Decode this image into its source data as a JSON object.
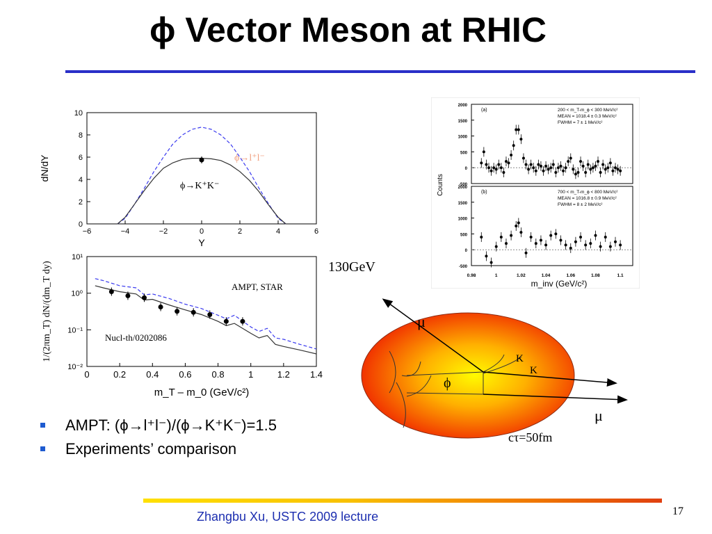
{
  "slide": {
    "title": "ϕ Vector Meson at RHIC",
    "page_number": "17",
    "footer": "Zhangbu Xu, USTC 2009 lecture",
    "energy_label": "130GeV",
    "bullets": [
      "AMPT:  (ϕ→l⁺l⁻)/(ϕ→K⁺K⁻)=1.5",
      "Experiments’ comparison"
    ],
    "colors": {
      "title_rule": "#2a2fc8",
      "bullet": "#1e5bd0",
      "footer_text": "#1d2fb0",
      "dilepton_label": "#f0a080"
    }
  },
  "diagram": {
    "mu_top": "μ",
    "mu_bottom": "μ",
    "k1": "K",
    "k2": "K",
    "phi": "ϕ",
    "ctau": "cτ=50fm"
  },
  "chart_data": [
    {
      "type": "line",
      "xlabel": "Y",
      "ylabel": "dN/dY",
      "xlim": [
        -6,
        6
      ],
      "ylim": [
        0,
        10
      ],
      "xticks": [
        -6,
        -4,
        -2,
        0,
        2,
        4,
        6
      ],
      "yticks": [
        0,
        2,
        4,
        6,
        8,
        10
      ],
      "annotations": [
        "ϕ→l⁺l⁻",
        "ϕ→K⁺K⁻"
      ],
      "series": [
        {
          "name": "ϕ→l⁺l⁻",
          "style": "dashed",
          "color": "#3b3bef",
          "x": [
            -4.4,
            -4,
            -3.5,
            -3,
            -2.5,
            -2,
            -1.5,
            -1,
            -0.5,
            0,
            0.5,
            1,
            1.5,
            2,
            2.5,
            3,
            3.5,
            4,
            4.4
          ],
          "y": [
            0,
            0.5,
            1.8,
            3.2,
            4.7,
            6.0,
            7.2,
            8.0,
            8.5,
            8.7,
            8.5,
            8.0,
            7.2,
            6.0,
            4.7,
            3.2,
            1.8,
            0.5,
            0
          ]
        },
        {
          "name": "ϕ→K⁺K⁻",
          "style": "solid",
          "color": "#333333",
          "x": [
            -4.4,
            -4,
            -3.5,
            -3,
            -2.5,
            -2,
            -1.5,
            -1,
            -0.5,
            0,
            0.5,
            1,
            1.5,
            2,
            2.5,
            3,
            3.5,
            4,
            4.4
          ],
          "y": [
            0,
            0.6,
            1.8,
            3.0,
            4.1,
            5.0,
            5.5,
            5.8,
            5.9,
            5.9,
            5.85,
            5.7,
            5.3,
            4.7,
            3.9,
            2.9,
            1.7,
            0.6,
            0
          ]
        },
        {
          "name": "data",
          "style": "points",
          "x": [
            0
          ],
          "y": [
            5.75
          ]
        }
      ]
    },
    {
      "type": "line",
      "xlabel": "m_T – m_0  (GeV/c²)",
      "ylabel": "1/(2πm_T) dN/(dm_T dy)",
      "xlim": [
        0,
        1.4
      ],
      "ylim": [
        0.01,
        10
      ],
      "yscale": "log",
      "xticks": [
        0,
        0.2,
        0.4,
        0.6,
        0.8,
        1.0,
        1.2,
        1.4
      ],
      "yticks": [
        "10⁻²",
        "10⁻¹",
        "10⁰",
        "10¹"
      ],
      "annotations": [
        "AMPT, STAR",
        "Nucl-th/0202086"
      ],
      "series": [
        {
          "name": "dashed",
          "style": "dashed",
          "color": "#3b3bef",
          "x": [
            0.05,
            0.1,
            0.2,
            0.3,
            0.35,
            0.4,
            0.5,
            0.6,
            0.7,
            0.8,
            0.85,
            0.9,
            1.0,
            1.05,
            1.1,
            1.15,
            1.2,
            1.3,
            1.4
          ],
          "y": [
            2.5,
            2.2,
            1.6,
            1.4,
            0.9,
            0.95,
            0.72,
            0.5,
            0.38,
            0.25,
            0.2,
            0.25,
            0.12,
            0.09,
            0.11,
            0.06,
            0.055,
            0.04,
            0.03
          ]
        },
        {
          "name": "solid",
          "style": "solid",
          "color": "#333333",
          "x": [
            0.05,
            0.1,
            0.2,
            0.3,
            0.35,
            0.4,
            0.5,
            0.6,
            0.7,
            0.8,
            0.85,
            0.9,
            1.0,
            1.05,
            1.1,
            1.15,
            1.2,
            1.3,
            1.4
          ],
          "y": [
            1.6,
            1.4,
            1.1,
            0.95,
            0.65,
            0.68,
            0.48,
            0.35,
            0.26,
            0.17,
            0.13,
            0.15,
            0.08,
            0.06,
            0.07,
            0.04,
            0.035,
            0.028,
            0.022
          ]
        },
        {
          "name": "data",
          "style": "points",
          "x": [
            0.15,
            0.25,
            0.35,
            0.45,
            0.55,
            0.65,
            0.75,
            0.85,
            0.95
          ],
          "y": [
            1.1,
            0.85,
            0.75,
            0.42,
            0.32,
            0.3,
            0.26,
            0.17,
            0.17
          ]
        }
      ]
    },
    {
      "type": "scatter",
      "xlabel": "m_inv (GeV/c²)",
      "ylabel": "Counts",
      "xlim": [
        0.98,
        1.11
      ],
      "xticks": [
        "0.98",
        "1",
        "1.02",
        "1.04",
        "1.06",
        "1.08",
        "1.1"
      ],
      "panels": [
        {
          "label": "(a)",
          "ylim": [
            -500,
            2000
          ],
          "yticks": [
            -500,
            0,
            500,
            1000,
            1500,
            2000
          ],
          "info": [
            "200 < m_T-m_ϕ < 300 MeV/c²",
            "MEAN = 1018.4 ± 0.3 MeV/c²",
            "FWHM = 7 ± 1 MeV/c²"
          ],
          "x": [
            0.988,
            0.99,
            0.992,
            0.994,
            0.996,
            0.998,
            1.0,
            1.002,
            1.004,
            1.006,
            1.008,
            1.01,
            1.012,
            1.014,
            1.016,
            1.018,
            1.02,
            1.022,
            1.024,
            1.026,
            1.028,
            1.03,
            1.032,
            1.034,
            1.036,
            1.038,
            1.04,
            1.042,
            1.044,
            1.046,
            1.048,
            1.05,
            1.052,
            1.054,
            1.056,
            1.058,
            1.06,
            1.062,
            1.064,
            1.066,
            1.068,
            1.07,
            1.072,
            1.074,
            1.076,
            1.078,
            1.08,
            1.082,
            1.084,
            1.086,
            1.088,
            1.09,
            1.092,
            1.094,
            1.096,
            1.098,
            1.1
          ],
          "y": [
            150,
            500,
            100,
            0,
            -100,
            0,
            -50,
            100,
            0,
            -150,
            200,
            150,
            400,
            700,
            1200,
            1200,
            900,
            300,
            100,
            -50,
            100,
            0,
            -100,
            100,
            50,
            -100,
            50,
            -50,
            0,
            100,
            -150,
            0,
            50,
            -100,
            0,
            200,
            300,
            -50,
            -200,
            -150,
            200,
            50,
            -150,
            100,
            -50,
            0,
            50,
            200,
            -150,
            100,
            -50,
            0,
            150,
            -100,
            0,
            -50,
            -100
          ]
        },
        {
          "label": "(b)",
          "ylim": [
            -500,
            2000
          ],
          "yticks": [
            -500,
            0,
            500,
            1000,
            1500,
            2000
          ],
          "info": [
            "700 < m_T-m_ϕ < 800 MeV/c²",
            "MEAN = 1016.8 ± 0.9 MeV/c²",
            "FWHM = 8 ± 2 MeV/c²"
          ],
          "x": [
            0.988,
            0.992,
            0.996,
            1.0,
            1.004,
            1.008,
            1.012,
            1.016,
            1.018,
            1.02,
            1.024,
            1.028,
            1.032,
            1.036,
            1.04,
            1.044,
            1.048,
            1.052,
            1.056,
            1.06,
            1.064,
            1.068,
            1.072,
            1.076,
            1.08,
            1.084,
            1.088,
            1.092,
            1.096,
            1.1
          ],
          "y": [
            400,
            -200,
            -400,
            100,
            400,
            200,
            450,
            750,
            850,
            550,
            -100,
            400,
            200,
            300,
            150,
            450,
            500,
            300,
            150,
            50,
            250,
            400,
            150,
            200,
            450,
            100,
            400,
            100,
            250,
            150
          ]
        }
      ]
    }
  ]
}
